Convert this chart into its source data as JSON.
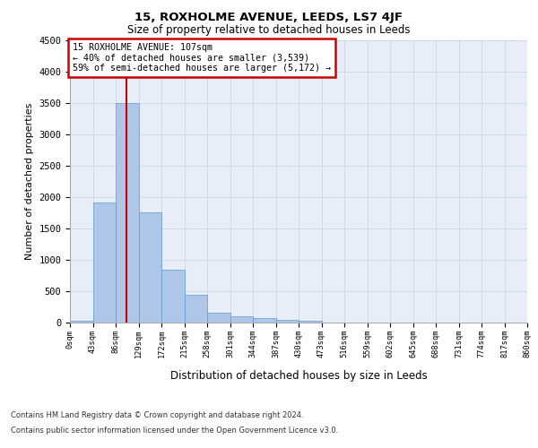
{
  "title_line1": "15, ROXHOLME AVENUE, LEEDS, LS7 4JF",
  "title_line2": "Size of property relative to detached houses in Leeds",
  "xlabel": "Distribution of detached houses by size in Leeds",
  "ylabel": "Number of detached properties",
  "bar_values": [
    30,
    1920,
    3500,
    1760,
    840,
    440,
    155,
    95,
    65,
    45,
    35,
    0,
    0,
    0,
    0,
    0,
    0,
    0,
    0,
    0
  ],
  "bar_labels": [
    "0sqm",
    "43sqm",
    "86sqm",
    "129sqm",
    "172sqm",
    "215sqm",
    "258sqm",
    "301sqm",
    "344sqm",
    "387sqm",
    "430sqm",
    "473sqm",
    "516sqm",
    "559sqm",
    "602sqm",
    "645sqm",
    "688sqm",
    "731sqm",
    "774sqm",
    "817sqm",
    "860sqm"
  ],
  "bar_color": "#aec6e8",
  "bar_edge_color": "#5b9bd5",
  "annotation_line1": "15 ROXHOLME AVENUE: 107sqm",
  "annotation_line2": "← 40% of detached houses are smaller (3,539)",
  "annotation_line3": "59% of semi-detached houses are larger (5,172) →",
  "annotation_box_color": "#ffffff",
  "annotation_box_edge": "#cc0000",
  "ylim": [
    0,
    4500
  ],
  "yticks": [
    0,
    500,
    1000,
    1500,
    2000,
    2500,
    3000,
    3500,
    4000,
    4500
  ],
  "grid_color": "#d0d8e8",
  "background_color": "#e8eef8",
  "red_line_color": "#cc0000",
  "footer_line1": "Contains HM Land Registry data © Crown copyright and database right 2024.",
  "footer_line2": "Contains public sector information licensed under the Open Government Licence v3.0.",
  "figsize": [
    6.0,
    5.0
  ],
  "dpi": 100
}
